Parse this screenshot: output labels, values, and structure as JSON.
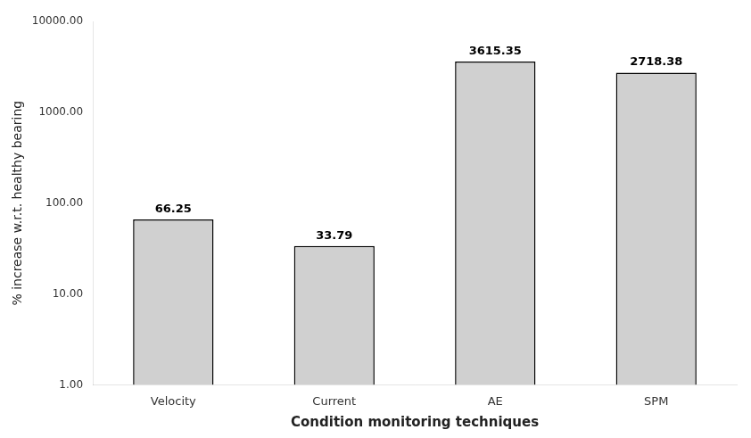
{
  "chart_data": {
    "type": "bar",
    "categories": [
      "Velocity",
      "Current",
      "AE",
      "SPM"
    ],
    "values": [
      66.25,
      33.79,
      3615.35,
      2718.38
    ],
    "color": "#d0d0d0",
    "xlabel": "Condition monitoring techniques",
    "ylabel": "% increase w.r.t. healthy bearing",
    "log": "y",
    "ylim": [
      1.0,
      10000.0
    ],
    "yticks": [
      {
        "value": 1.0,
        "label": "1.00"
      },
      {
        "value": 10.0,
        "label": "10.00"
      },
      {
        "value": 100.0,
        "label": "100.00"
      },
      {
        "value": 1000.0,
        "label": "1000.00"
      },
      {
        "value": 10000.0,
        "label": "10000.00"
      }
    ],
    "grid": false,
    "data_labels": true
  }
}
